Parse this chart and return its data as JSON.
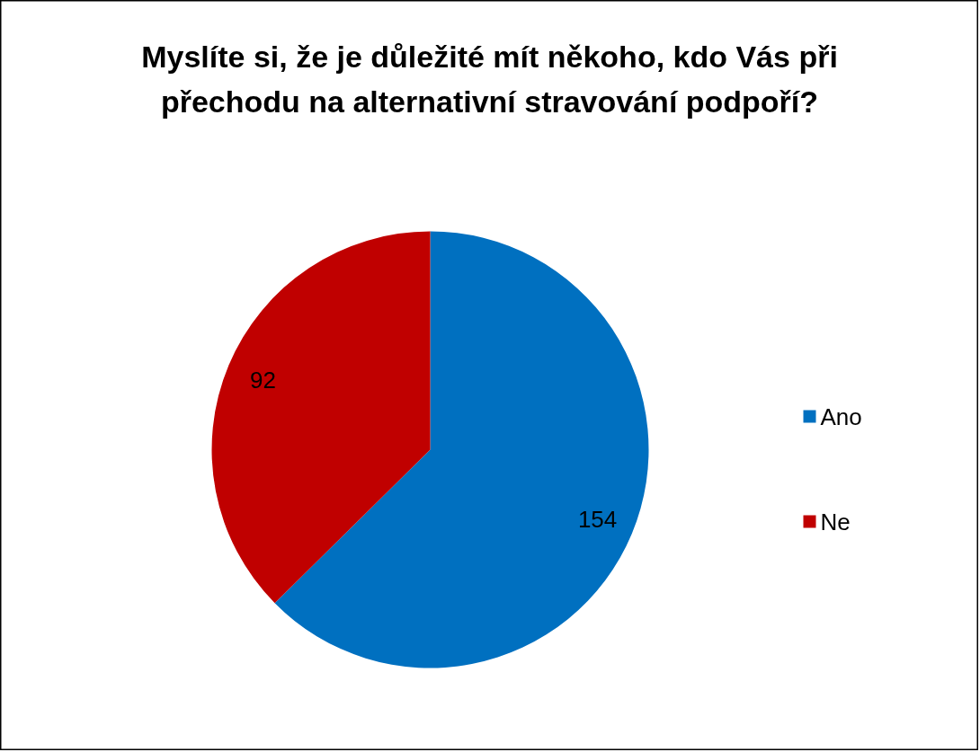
{
  "chart_data": {
    "type": "pie",
    "title": "Myslíte si, že je důležité mít někoho, kdo Vás při přechodu na alternativní stravování podpoří?",
    "categories": [
      "Ano",
      "Ne"
    ],
    "values": [
      154,
      92
    ],
    "colors": [
      "#0070c0",
      "#c00000"
    ],
    "data_labels": true,
    "legend": "right"
  }
}
